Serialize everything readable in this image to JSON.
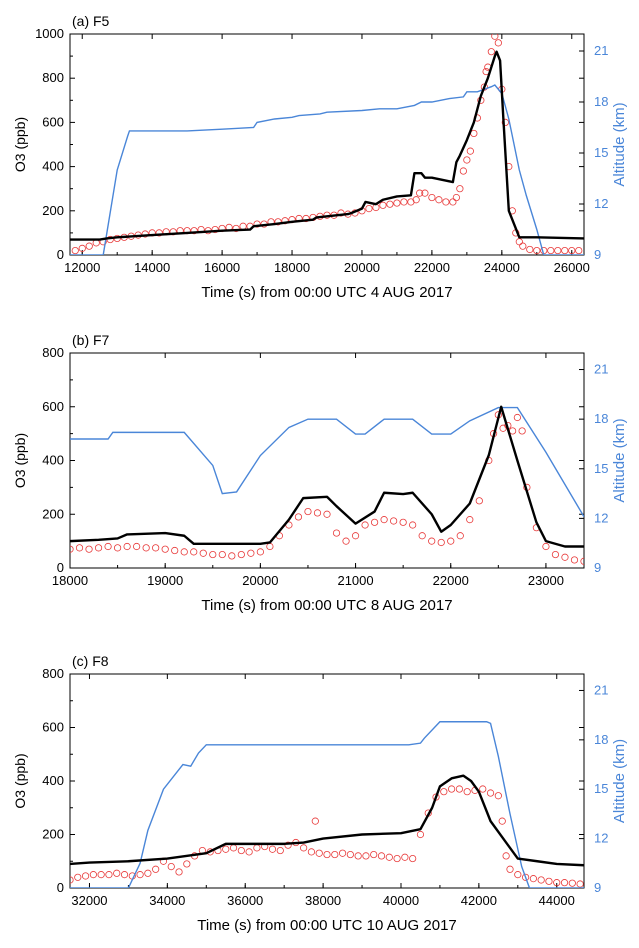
{
  "chart_data": [
    {
      "type": "line",
      "title": "(a) F5",
      "xlabel": "Time (s) from 00:00 UTC 4 AUG 2017",
      "ylabel": "O3 (ppb)",
      "y2label": "Altitude (km)",
      "xlim": [
        11650,
        26350
      ],
      "ylim": [
        0,
        1000
      ],
      "y2lim": [
        9,
        22
      ],
      "xticks": [
        12000,
        14000,
        16000,
        18000,
        20000,
        22000,
        24000,
        26000
      ],
      "xtick_labels": [
        "12000",
        "14000",
        "16000",
        "18000",
        "20000",
        "22000",
        "24000",
        "26000"
      ],
      "yticks": [
        0,
        200,
        400,
        600,
        800,
        1000
      ],
      "ytick_labels": [
        "0",
        "200",
        "400",
        "600",
        "800",
        "1000"
      ],
      "y2ticks": [
        9,
        12,
        15,
        18,
        21
      ],
      "y2tick_labels": [
        "9",
        "12",
        "15",
        "18",
        "21"
      ],
      "colors": {
        "model": "#000000",
        "observed": "#e83a3a",
        "altitude": "#4a86d8"
      },
      "series": [
        {
          "role": "model",
          "style": "line",
          "x": [
            11650,
            12500,
            12700,
            13000,
            14000,
            15000,
            16000,
            16800,
            16900,
            17500,
            18000,
            18600,
            18700,
            19000,
            19600,
            19700,
            20000,
            20100,
            20400,
            20600,
            21000,
            21400,
            21500,
            21700,
            21800,
            22000,
            22600,
            22700,
            22800,
            23000,
            23200,
            23400,
            23600,
            23800,
            23850,
            23950,
            24050,
            24200,
            24500,
            25000,
            26350
          ],
          "y": [
            70,
            70,
            75,
            80,
            90,
            100,
            110,
            115,
            130,
            140,
            150,
            160,
            170,
            175,
            185,
            190,
            210,
            240,
            230,
            250,
            265,
            270,
            370,
            370,
            350,
            350,
            330,
            420,
            450,
            520,
            600,
            720,
            800,
            900,
            920,
            880,
            600,
            200,
            80,
            80,
            75
          ]
        },
        {
          "role": "observed",
          "style": "markers",
          "x": [
            11800,
            12000,
            12200,
            12400,
            12600,
            12800,
            13000,
            13200,
            13400,
            13600,
            13800,
            14000,
            14200,
            14400,
            14600,
            14800,
            15000,
            15200,
            15400,
            15600,
            15800,
            16000,
            16200,
            16400,
            16600,
            16800,
            17000,
            17200,
            17400,
            17600,
            17800,
            18000,
            18200,
            18400,
            18600,
            18800,
            19000,
            19200,
            19400,
            19600,
            19800,
            20000,
            20200,
            20400,
            20600,
            20800,
            21000,
            21200,
            21400,
            21550,
            21650,
            21800,
            22000,
            22200,
            22400,
            22600,
            22700,
            22800,
            22900,
            23000,
            23100,
            23200,
            23300,
            23400,
            23500,
            23550,
            23600,
            23700,
            23800,
            23900,
            24000,
            24100,
            24200,
            24300,
            24400,
            24500,
            24600,
            24800,
            25000,
            25200,
            25400,
            25600,
            25800,
            26000,
            26200
          ],
          "y": [
            20,
            30,
            40,
            55,
            60,
            70,
            75,
            80,
            85,
            90,
            95,
            100,
            100,
            105,
            105,
            110,
            110,
            110,
            115,
            110,
            115,
            120,
            125,
            120,
            130,
            130,
            140,
            140,
            150,
            150,
            155,
            160,
            165,
            165,
            170,
            175,
            180,
            180,
            190,
            185,
            190,
            200,
            210,
            215,
            225,
            230,
            235,
            240,
            240,
            250,
            280,
            280,
            260,
            250,
            240,
            240,
            260,
            300,
            380,
            430,
            470,
            550,
            620,
            700,
            760,
            830,
            850,
            920,
            990,
            960,
            750,
            600,
            400,
            200,
            100,
            60,
            40,
            25,
            20,
            20,
            20,
            20,
            20,
            20,
            20
          ]
        },
        {
          "role": "altitude",
          "style": "line",
          "x": [
            11650,
            12600,
            12800,
            13000,
            13300,
            13350,
            14000,
            15000,
            16000,
            16900,
            17000,
            17500,
            18000,
            18200,
            18800,
            19000,
            20000,
            20500,
            21000,
            21500,
            21700,
            22000,
            22500,
            22900,
            23000,
            23300,
            23700,
            23800,
            24000,
            24200,
            24500,
            24700,
            25000,
            25200,
            26350
          ],
          "y": [
            9.0,
            9.0,
            11.5,
            14.0,
            16.0,
            16.3,
            16.3,
            16.3,
            16.4,
            16.5,
            16.8,
            17.0,
            17.1,
            17.2,
            17.3,
            17.4,
            17.5,
            17.6,
            17.6,
            17.8,
            18.0,
            18.0,
            18.2,
            18.3,
            18.6,
            18.6,
            18.9,
            19.0,
            18.5,
            17.0,
            14.0,
            12.5,
            10.5,
            9.0,
            9.0
          ]
        }
      ]
    },
    {
      "type": "line",
      "title": "(b) F7",
      "xlabel": "Time (s) from 00:00 UTC 8 AUG 2017",
      "ylabel": "O3 (ppb)",
      "y2label": "Altitude (km)",
      "xlim": [
        18000,
        23400
      ],
      "ylim": [
        0,
        800
      ],
      "y2lim": [
        9,
        22
      ],
      "xticks": [
        18000,
        19000,
        20000,
        21000,
        22000,
        23000
      ],
      "xtick_labels": [
        "18000",
        "19000",
        "20000",
        "21000",
        "22000",
        "23000"
      ],
      "yticks": [
        0,
        200,
        400,
        600,
        800
      ],
      "ytick_labels": [
        "0",
        "200",
        "400",
        "600",
        "800"
      ],
      "y2ticks": [
        9,
        12,
        15,
        18,
        21
      ],
      "y2tick_labels": [
        "9",
        "12",
        "15",
        "18",
        "21"
      ],
      "colors": {
        "model": "#000000",
        "observed": "#e83a3a",
        "altitude": "#4a86d8"
      },
      "series": [
        {
          "role": "model",
          "style": "line",
          "x": [
            18000,
            18300,
            18500,
            18600,
            19000,
            19200,
            19300,
            19600,
            20000,
            20100,
            20300,
            20450,
            20700,
            20800,
            21000,
            21200,
            21300,
            21500,
            21600,
            21800,
            21900,
            22000,
            22200,
            22400,
            22530,
            22700,
            22900,
            23000,
            23200,
            23400
          ],
          "y": [
            100,
            105,
            110,
            125,
            130,
            120,
            90,
            90,
            90,
            95,
            180,
            260,
            265,
            230,
            165,
            210,
            280,
            275,
            280,
            200,
            135,
            160,
            240,
            420,
            600,
            400,
            170,
            100,
            80,
            80
          ]
        },
        {
          "role": "observed",
          "style": "markers",
          "x": [
            18000,
            18100,
            18200,
            18300,
            18400,
            18500,
            18600,
            18700,
            18800,
            18900,
            19000,
            19100,
            19200,
            19300,
            19400,
            19500,
            19600,
            19700,
            19800,
            19900,
            20000,
            20100,
            20200,
            20300,
            20400,
            20500,
            20600,
            20700,
            20800,
            20900,
            21000,
            21100,
            21200,
            21300,
            21400,
            21500,
            21600,
            21700,
            21800,
            21900,
            22000,
            22100,
            22200,
            22300,
            22400,
            22450,
            22500,
            22550,
            22600,
            22650,
            22700,
            22750,
            22800,
            22900,
            23000,
            23100,
            23200,
            23300,
            23400
          ],
          "y": [
            70,
            75,
            70,
            75,
            80,
            75,
            80,
            80,
            75,
            75,
            70,
            65,
            60,
            60,
            55,
            50,
            50,
            45,
            50,
            55,
            60,
            80,
            120,
            160,
            190,
            210,
            205,
            200,
            130,
            100,
            120,
            160,
            170,
            180,
            175,
            170,
            160,
            120,
            100,
            95,
            100,
            120,
            180,
            250,
            400,
            500,
            570,
            520,
            530,
            510,
            560,
            510,
            300,
            150,
            80,
            50,
            40,
            30,
            25
          ]
        },
        {
          "role": "altitude",
          "style": "line",
          "x": [
            18000,
            18400,
            18450,
            19200,
            19500,
            19600,
            19750,
            20000,
            20300,
            20500,
            20800,
            21000,
            21100,
            21300,
            21600,
            21800,
            22000,
            22200,
            22500,
            22700,
            23000,
            23400
          ],
          "y": [
            16.8,
            16.8,
            17.2,
            17.2,
            15.2,
            13.5,
            13.6,
            15.8,
            17.5,
            18.0,
            18.0,
            17.1,
            17.1,
            18.0,
            18.0,
            17.1,
            17.1,
            17.9,
            18.7,
            18.7,
            16.0,
            12.1
          ]
        }
      ]
    },
    {
      "type": "line",
      "title": "(c) F8",
      "xlabel": "Time (s) from 00:00 UTC 10 AUG 2017",
      "ylabel": "O3 (ppb)",
      "y2label": "Altitude (km)",
      "xlim": [
        31500,
        44700
      ],
      "ylim": [
        0,
        800
      ],
      "y2lim": [
        9,
        22
      ],
      "xticks": [
        32000,
        34000,
        36000,
        38000,
        40000,
        42000,
        44000
      ],
      "xtick_labels": [
        "32000",
        "34000",
        "36000",
        "38000",
        "40000",
        "42000",
        "44000"
      ],
      "yticks": [
        0,
        200,
        400,
        600,
        800
      ],
      "ytick_labels": [
        "0",
        "200",
        "400",
        "600",
        "800"
      ],
      "y2ticks": [
        9,
        12,
        15,
        18,
        21
      ],
      "y2tick_labels": [
        "9",
        "12",
        "15",
        "18",
        "21"
      ],
      "colors": {
        "model": "#000000",
        "observed": "#e83a3a",
        "altitude": "#4a86d8"
      },
      "series": [
        {
          "role": "model",
          "style": "line",
          "x": [
            31500,
            32000,
            33000,
            34000,
            35000,
            35500,
            36000,
            36500,
            37000,
            37500,
            38000,
            39000,
            40000,
            40500,
            40800,
            41000,
            41300,
            41600,
            41800,
            42000,
            42300,
            42600,
            43000,
            43500,
            44000,
            44700
          ],
          "y": [
            90,
            95,
            100,
            110,
            130,
            165,
            165,
            165,
            165,
            170,
            185,
            200,
            205,
            220,
            300,
            380,
            410,
            420,
            400,
            360,
            250,
            190,
            110,
            100,
            90,
            85
          ]
        },
        {
          "role": "observed",
          "style": "markers",
          "x": [
            31500,
            31700,
            31900,
            32100,
            32300,
            32500,
            32700,
            32900,
            33100,
            33300,
            33500,
            33700,
            33900,
            34100,
            34300,
            34500,
            34700,
            34900,
            35100,
            35300,
            35500,
            35700,
            35900,
            36100,
            36300,
            36500,
            36700,
            36900,
            37100,
            37300,
            37500,
            37700,
            37800,
            37900,
            38100,
            38300,
            38500,
            38700,
            38900,
            39100,
            39300,
            39500,
            39700,
            39900,
            40100,
            40300,
            40500,
            40700,
            40900,
            41100,
            41300,
            41500,
            41700,
            41900,
            42100,
            42300,
            42500,
            42600,
            42700,
            42800,
            43000,
            43200,
            43400,
            43600,
            43800,
            44000,
            44200,
            44400,
            44600
          ],
          "y": [
            30,
            40,
            45,
            50,
            50,
            50,
            55,
            50,
            45,
            50,
            55,
            70,
            100,
            80,
            60,
            90,
            120,
            140,
            135,
            140,
            145,
            150,
            140,
            135,
            150,
            155,
            145,
            140,
            160,
            170,
            150,
            135,
            250,
            130,
            125,
            125,
            130,
            125,
            120,
            120,
            125,
            120,
            115,
            110,
            115,
            110,
            200,
            280,
            340,
            360,
            370,
            370,
            360,
            365,
            370,
            355,
            345,
            250,
            120,
            70,
            50,
            40,
            35,
            30,
            25,
            20,
            20,
            18,
            15
          ]
        },
        {
          "role": "altitude",
          "style": "line",
          "x": [
            31500,
            33000,
            33300,
            33500,
            33900,
            34300,
            34400,
            34600,
            34800,
            35000,
            36000,
            37000,
            38000,
            39000,
            40000,
            40200,
            40500,
            40600,
            41000,
            42000,
            42200,
            42300,
            42500,
            42800,
            43100,
            43300,
            44700
          ],
          "y": [
            9.0,
            9.0,
            10.5,
            12.5,
            15.0,
            16.2,
            16.5,
            16.4,
            17.2,
            17.7,
            17.7,
            17.7,
            17.7,
            17.7,
            17.7,
            17.7,
            17.8,
            18.1,
            19.1,
            19.1,
            19.1,
            19.0,
            17.0,
            13.5,
            10.3,
            9.0,
            9.0
          ]
        }
      ]
    }
  ]
}
